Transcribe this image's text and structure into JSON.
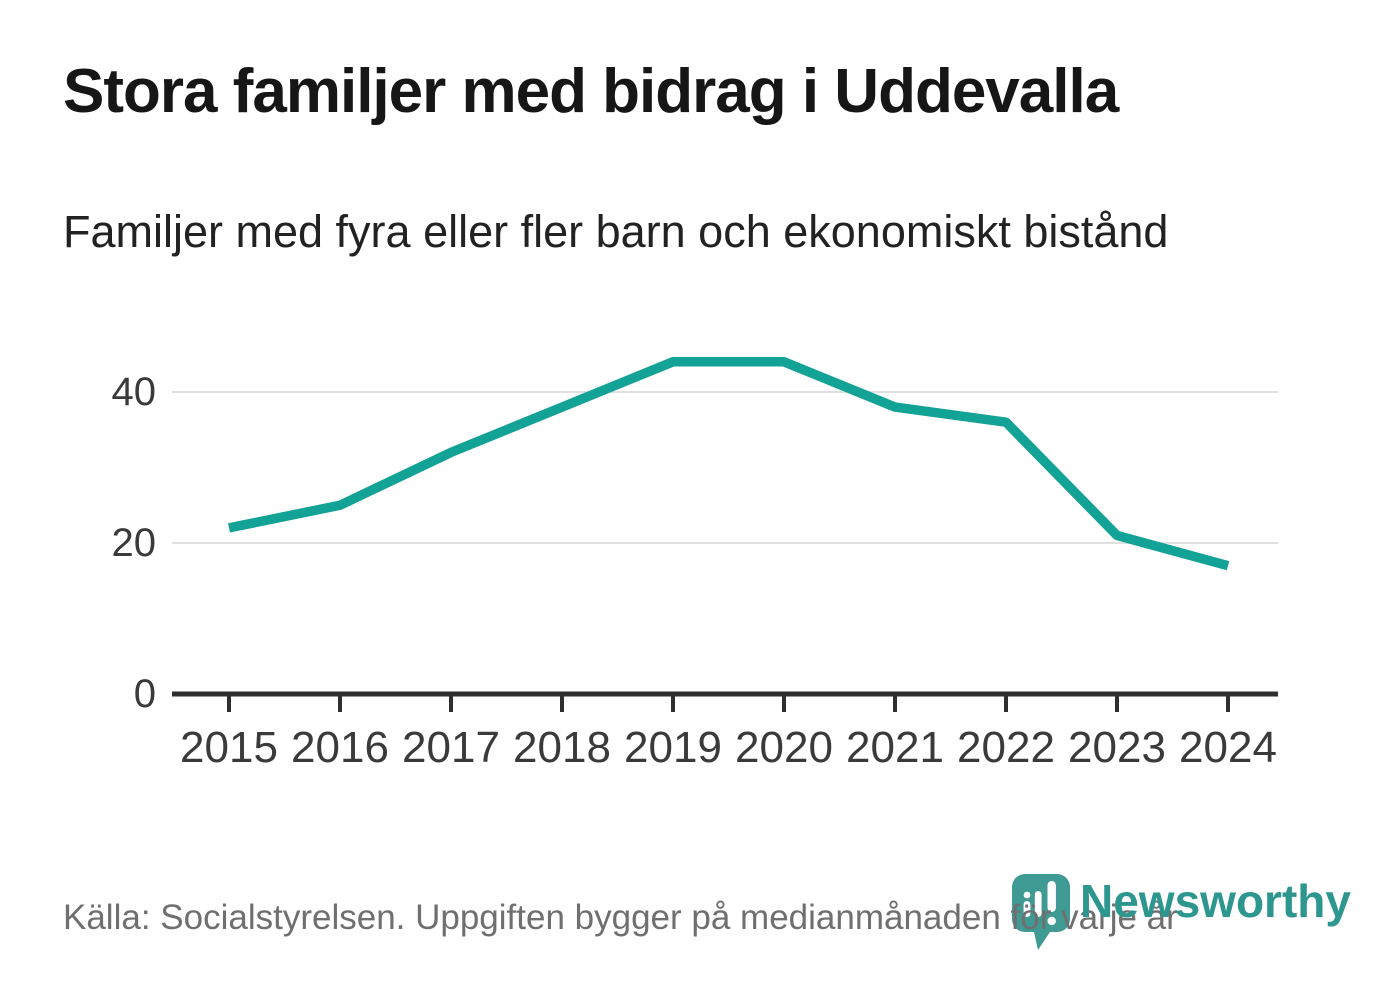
{
  "title": "Stora familjer med bidrag i Uddevalla",
  "subtitle": "Familjer med fyra eller fler barn och ekonomiskt bistånd",
  "footer": {
    "source": "Källa: Socialstyrelsen. Uppgiften bygger på medianmånaden för varje år",
    "brand": "Newsworthy"
  },
  "colors": {
    "line": "#13a296",
    "grid": "#e0e0e0",
    "axis": "#2f2f2f",
    "tick_label": "#3a3a3a",
    "badge": "#3e9a93",
    "wordmark": "#2d968f",
    "title_text": "#161616",
    "footer_text": "#6f6f6f"
  },
  "chart_data": {
    "type": "line",
    "title": "Stora familjer med bidrag i Uddevalla",
    "subtitle": "Familjer med fyra eller fler barn och ekonomiskt bistånd",
    "categories": [
      "2015",
      "2016",
      "2017",
      "2018",
      "2019",
      "2020",
      "2021",
      "2022",
      "2023",
      "2024"
    ],
    "series": [
      {
        "name": "Familjer med fyra eller fler barn och ekonomiskt bistånd",
        "values": [
          22,
          25,
          32,
          38,
          44,
          44,
          38,
          36,
          21,
          17
        ]
      }
    ],
    "xlabel": "",
    "ylabel": "",
    "ylim": [
      0,
      48
    ],
    "yticks": [
      0,
      20,
      40
    ],
    "grid": "horizontal",
    "legend": "none",
    "line_color": "#13a296"
  }
}
